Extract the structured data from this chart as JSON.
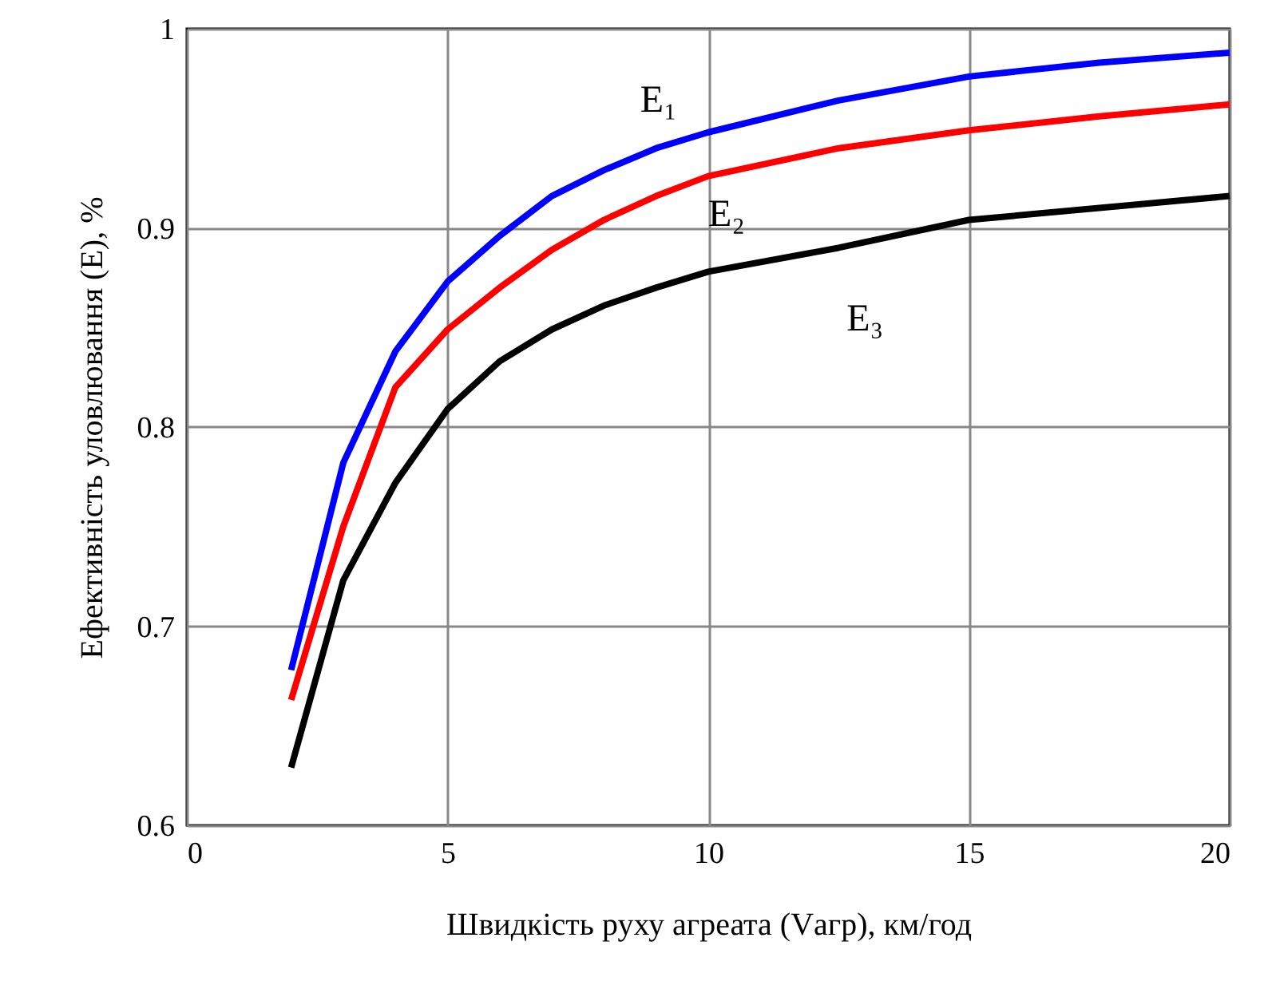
{
  "chart_data": {
    "type": "line",
    "xlabel": "Швидкість руху агреата (Vагр), км/год",
    "ylabel": "Ефективність уловлювання (E), %",
    "x": [
      2,
      3,
      4,
      5,
      6,
      7,
      8,
      9,
      10,
      12.5,
      15,
      17.5,
      20
    ],
    "series": [
      {
        "name": "E₁",
        "color": "#0000ff",
        "values": [
          0.678,
          0.782,
          0.838,
          0.873,
          0.896,
          0.916,
          0.929,
          0.94,
          0.948,
          0.964,
          0.976,
          0.983,
          0.988
        ]
      },
      {
        "name": "E₂",
        "color": "#ff0000",
        "values": [
          0.663,
          0.75,
          0.82,
          0.849,
          0.87,
          0.889,
          0.904,
          0.916,
          0.926,
          0.94,
          0.949,
          0.956,
          0.962
        ]
      },
      {
        "name": "E₃",
        "color": "#000000",
        "values": [
          0.629,
          0.723,
          0.772,
          0.809,
          0.833,
          0.849,
          0.861,
          0.87,
          0.878,
          0.89,
          0.904,
          0.91,
          0.916
        ]
      }
    ],
    "xlim": [
      0,
      20
    ],
    "xticks": [
      0,
      5,
      10,
      15,
      20
    ],
    "ylim": [
      0.6,
      1
    ],
    "yticks": [
      0.6,
      0.7,
      0.8,
      0.9,
      1
    ],
    "grid": true,
    "legend": false,
    "marker": "none",
    "line_style": "solid"
  }
}
